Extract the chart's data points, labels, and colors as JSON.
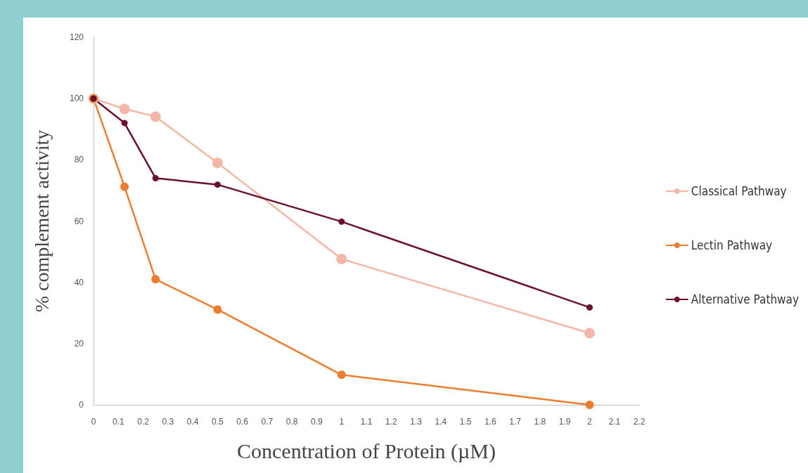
{
  "chart_data": {
    "type": "line",
    "xlabel": "Concentration of Protein (µM)",
    "ylabel": "% complement activity",
    "x": [
      0,
      0.125,
      0.25,
      0.5,
      1,
      2
    ],
    "series": [
      {
        "name": "Classical Pathway",
        "color": "#f4b6a6",
        "values": [
          100,
          96.6,
          94.1,
          79,
          47.6,
          23.4
        ]
      },
      {
        "name": "Lectin Pathway",
        "color": "#ec7d2e",
        "values": [
          100,
          71.2,
          41,
          31.1,
          9.8,
          0
        ]
      },
      {
        "name": "Alternative Pathway",
        "color": "#6b0f2f",
        "values": [
          100,
          92,
          74,
          71.9,
          59.8,
          31.8
        ]
      }
    ],
    "xlim": [
      0,
      2.2
    ],
    "xticks": [
      0,
      0.1,
      0.2,
      0.3,
      0.4,
      0.5,
      0.6,
      0.7,
      0.8,
      0.9,
      1,
      1.1,
      1.2,
      1.3,
      1.4,
      1.5,
      1.6,
      1.7,
      1.8,
      1.9,
      2,
      2.1,
      2.2
    ],
    "ylim": [
      0,
      120
    ],
    "yticks": [
      0,
      20,
      40,
      60,
      80,
      100,
      120
    ],
    "grid": false,
    "legend": "right",
    "marker": "circle",
    "line_style": "solid"
  }
}
